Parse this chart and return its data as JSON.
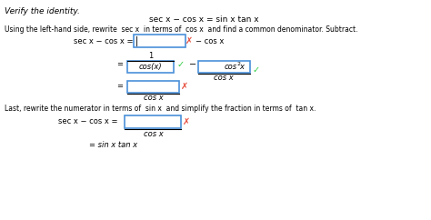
{
  "title_line": "Verify the identity.",
  "identity": "sec x − cos x = sin x tan x",
  "instruction": "Using the left-hand side, rewrite  sec x  in terms of  cos x  and find a common denominator. Subtract.",
  "last_instruction": "Last, rewrite the numerator in terms of  sin x  and simplify the fraction in terms of  tan x.",
  "bg_color": "#ffffff",
  "text_color": "#000000",
  "box_color": "#aad4f5",
  "check_color": "#2ecc40",
  "cross_color": "#e74c3c"
}
